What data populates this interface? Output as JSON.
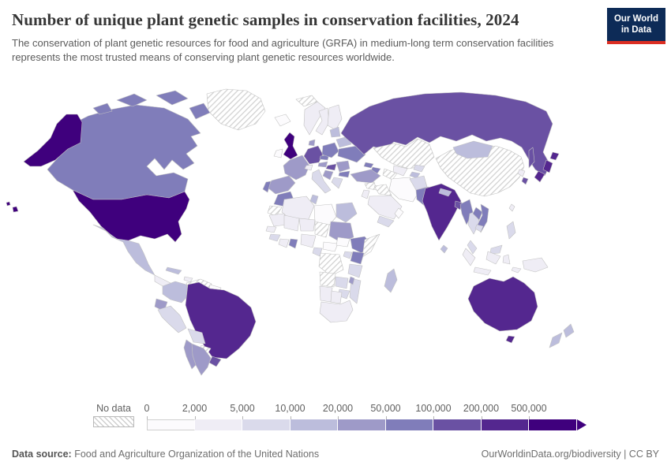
{
  "header": {
    "title": "Number of unique plant genetic samples in conservation facilities, 2024",
    "subtitle": "The conservation of plant genetic resources for food and agriculture (GRFA) in medium-long term conservation facilities represents the most trusted means of conserving plant genetic resources worldwide.",
    "logo": {
      "line1": "Our World",
      "line2": "in Data",
      "bg_color": "#0d2b57",
      "accent_color": "#dc2e22"
    }
  },
  "legend": {
    "no_data_label": "No data"
  },
  "footer": {
    "source_label": "Data source:",
    "source_text": " Food and Agriculture Organization of the United Nations",
    "right_text": "OurWorldinData.org/biodiversity | CC BY"
  },
  "chart_data": {
    "type": "heatmap",
    "subtype": "choropleth-world-map",
    "title": "Number of unique plant genetic samples in conservation facilities, 2024",
    "value_label": "Number of unique plant genetic samples",
    "bins": [
      "0",
      "2,000",
      "5,000",
      "10,000",
      "20,000",
      "50,000",
      "100,000",
      "200,000",
      "500,000"
    ],
    "bin_colors": [
      "#fcfbfd",
      "#efedf5",
      "#dadaeb",
      "#bcbddc",
      "#9e9ac8",
      "#807dba",
      "#6a51a3",
      "#54278f",
      "#3f007d"
    ],
    "no_data_style": "diagonal-hatch",
    "legend_open_ended_arrow": true,
    "country_bins": {
      "united-states": 9,
      "canada": 6,
      "greenland": "nodata",
      "mexico": 4,
      "central-america": 2,
      "cuba": 4,
      "caribbean": 2,
      "colombia": 4,
      "venezuela": "nodata",
      "guyana": 1,
      "ecuador": 5,
      "peru": 3,
      "brazil": 8,
      "bolivia": 3,
      "paraguay": "nodata",
      "uruguay": 7,
      "argentina": 5,
      "chile": 5,
      "iceland": 1,
      "united-kingdom": 9,
      "ireland": 1,
      "norway": 2,
      "sweden": 2,
      "finland": 2,
      "denmark": 5,
      "germany": 7,
      "france": 5,
      "spain": 5,
      "portugal": 6,
      "italy": 3,
      "switzerland": 2,
      "austria": 5,
      "czechia": 6,
      "poland": 6,
      "hungary": 7,
      "romania": 5,
      "bulgaria": 6,
      "greece": 3,
      "serbia": 5,
      "ukraine": 6,
      "belarus": 4,
      "baltics": 4,
      "svalbard": "nodata",
      "russia": 7,
      "kazakhstan": "nodata",
      "uzbekistan": 2,
      "turkmenistan": "nodata",
      "kyrgyzstan": 3,
      "tajikistan": 4,
      "georgia": 6,
      "azerbaijan": 6,
      "turkey": 5,
      "syria": "nodata",
      "iraq": "nodata",
      "iran": 1,
      "saudi-arabia": 2,
      "yemen": 3,
      "oman": 1,
      "israel-jordan": 2,
      "afghanistan": 3,
      "pakistan": 6,
      "india": 8,
      "nepal": 4,
      "bangladesh": 7,
      "sri-lanka": 4,
      "china": "nodata",
      "mongolia": 4,
      "north-korea": 2,
      "south-korea": 7,
      "japan": 8,
      "taiwan": 2,
      "myanmar": 6,
      "thailand": 3,
      "laos": 6,
      "vietnam": 6,
      "cambodia": 3,
      "malaysia": 3,
      "indonesia": 2,
      "philippines": 3,
      "papua-new-guinea": 2,
      "australia": 8,
      "new-zealand": 4,
      "morocco": 6,
      "western-sahara": "nodata",
      "algeria": 2,
      "tunisia": 4,
      "libya": 1,
      "egypt": 4,
      "mauritania": 2,
      "mali": 2,
      "niger": 2,
      "chad": "nodata",
      "sudan": 5,
      "senegal": 2,
      "guinea": 3,
      "ivory-coast": 2,
      "ghana": 6,
      "nigeria": 2,
      "cameroon": 3,
      "central-african-republic": 1,
      "south-sudan": 1,
      "ethiopia": 6,
      "somalia": "nodata",
      "kenya": 6,
      "uganda": 3,
      "dr-congo": "nodata",
      "tanzania": 3,
      "angola": "nodata",
      "zambia": 3,
      "zimbabwe": 3,
      "mozambique": 3,
      "malawi": 5,
      "namibia": 2,
      "botswana": 2,
      "south-africa": 2,
      "madagascar": 4
    }
  }
}
